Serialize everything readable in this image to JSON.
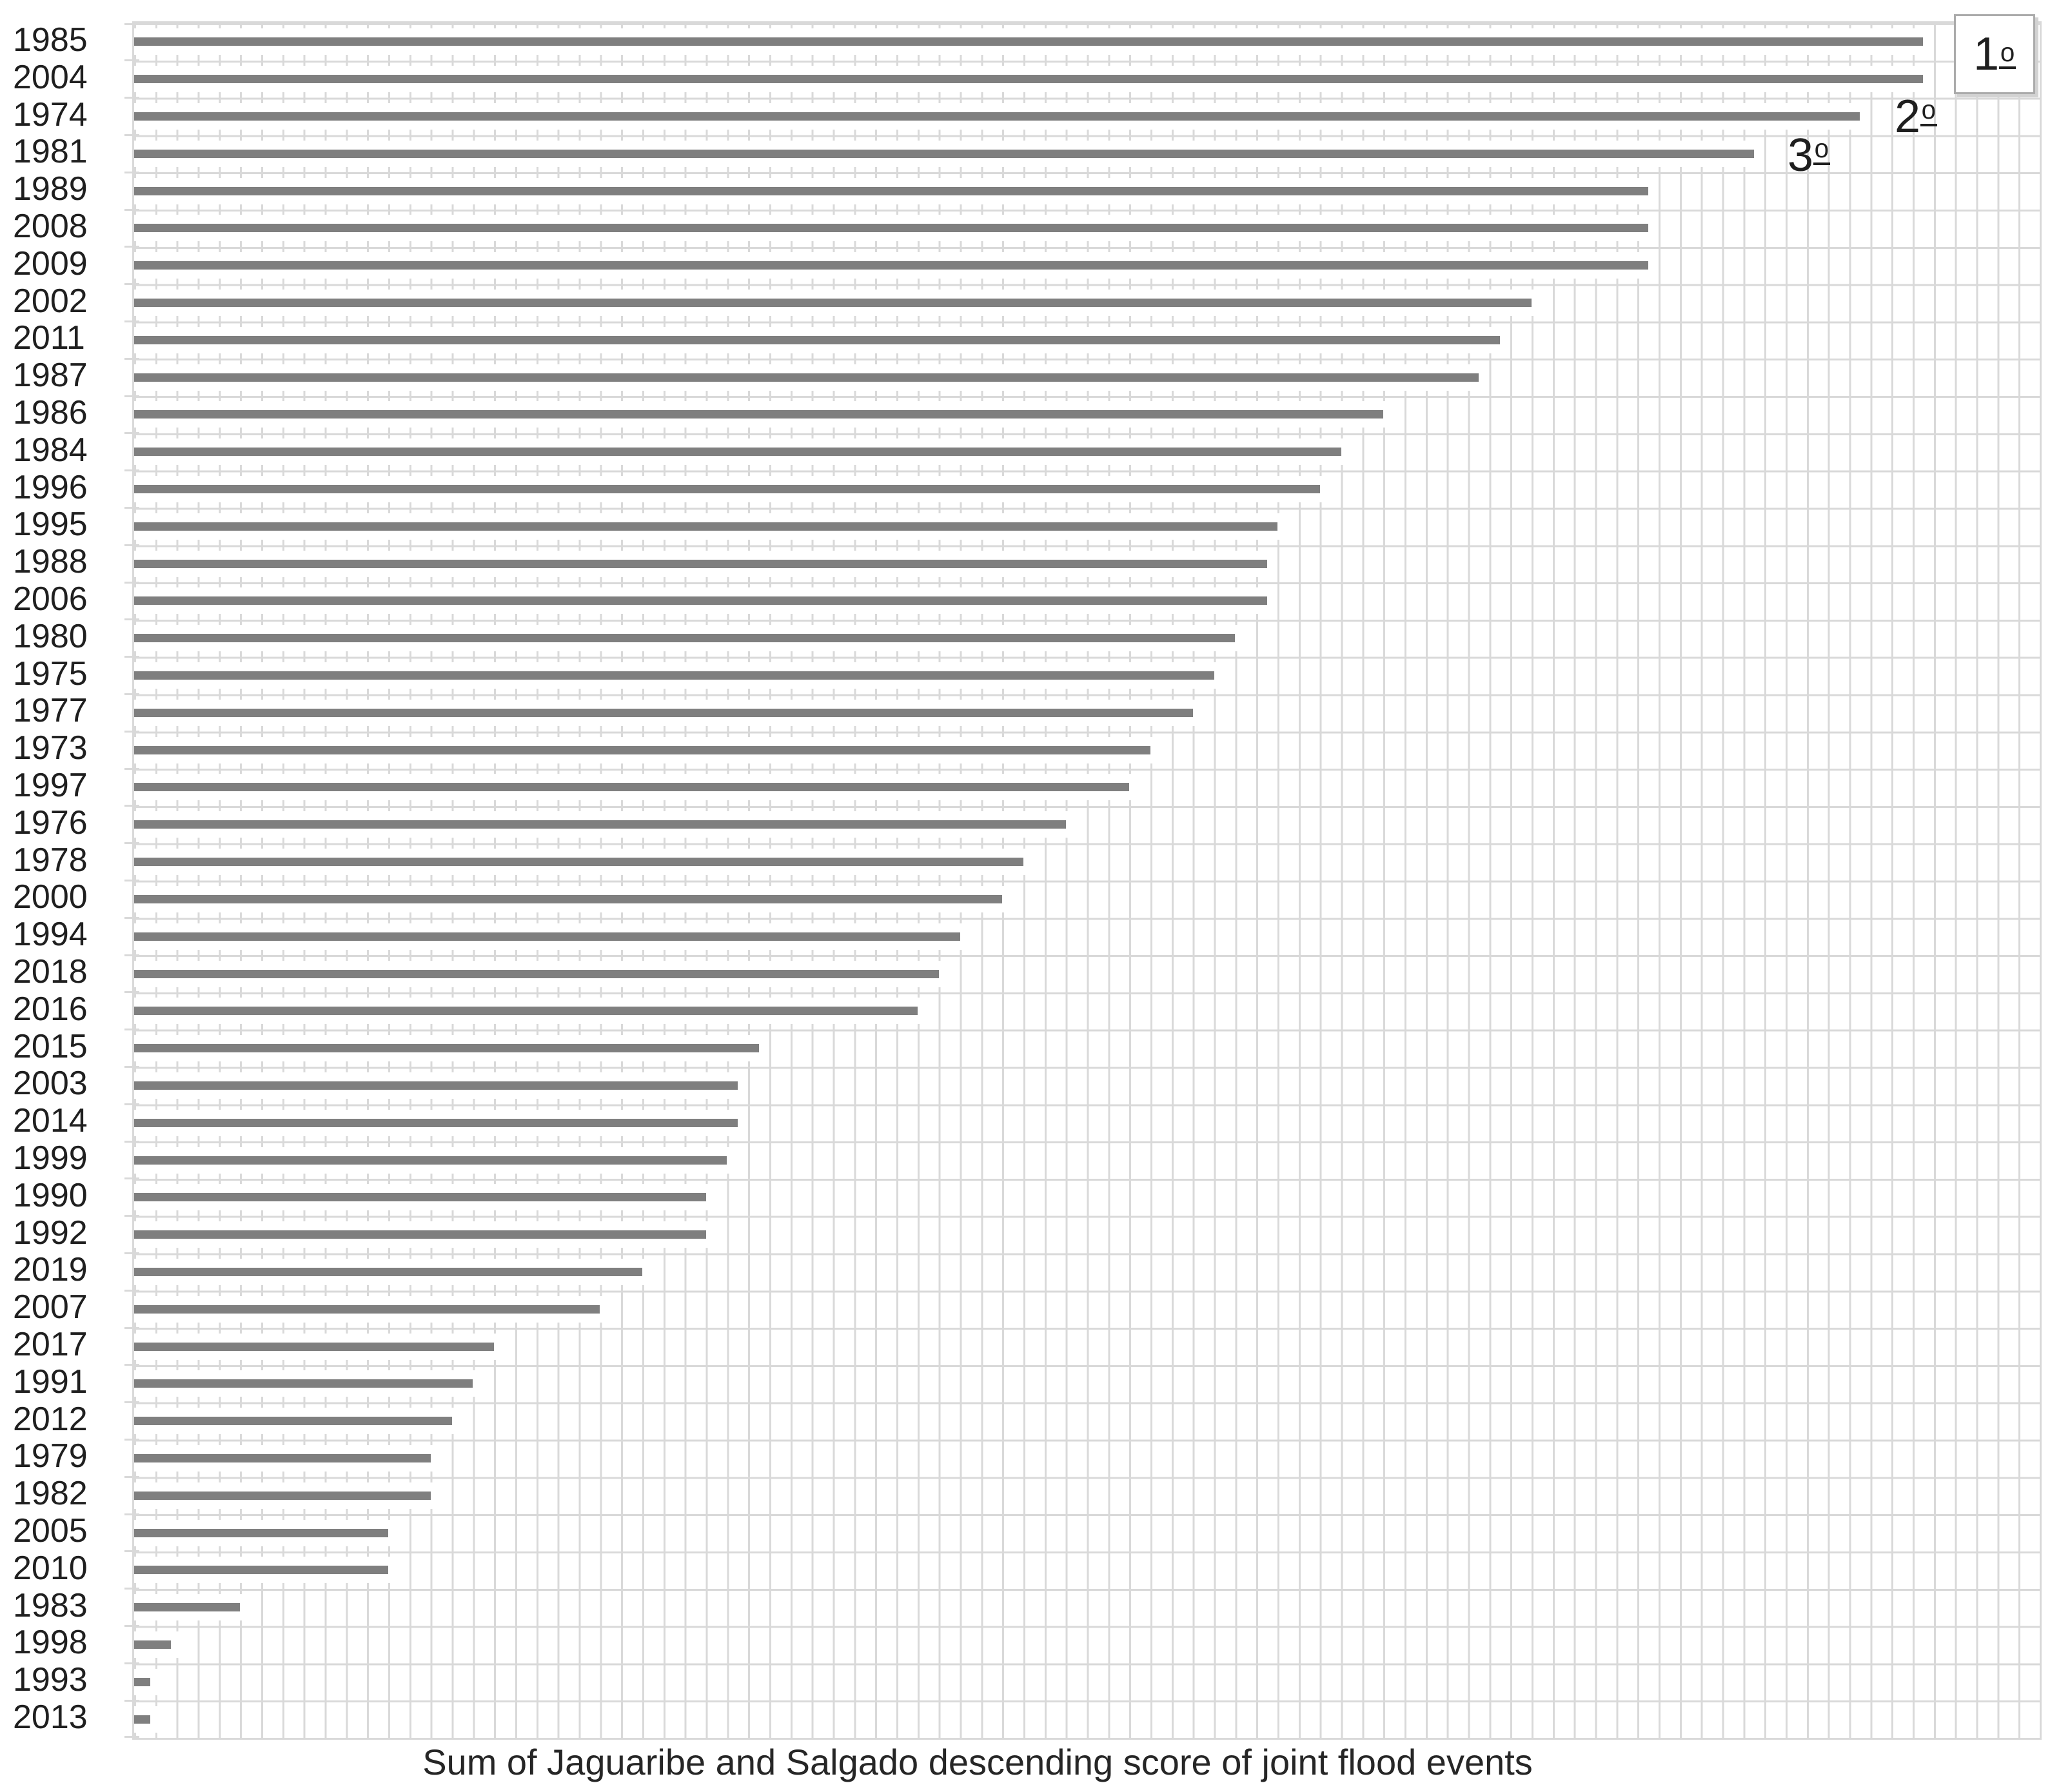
{
  "title": "Sum of Jaguaribe and Salgado descending score of joint flood events",
  "colors": {
    "background": "#ffffff",
    "bar": "#7f7f7f",
    "grid": "#d9d9d9",
    "text": "#1f1f1f",
    "annotation_box_fill": "#ffffff",
    "annotation_box_border": "#ababab"
  },
  "chart_data": {
    "type": "bar",
    "orientation": "horizontal",
    "title": "Sum of Jaguaribe and Salgado descending score of joint flood events",
    "categories": [
      "1985",
      "2004",
      "1974",
      "1981",
      "1989",
      "2008",
      "2009",
      "2002",
      "2011",
      "1987",
      "1986",
      "1984",
      "1996",
      "1995",
      "1988",
      "2006",
      "1980",
      "1975",
      "1977",
      "1973",
      "1997",
      "1976",
      "1978",
      "2000",
      "1994",
      "2018",
      "2016",
      "2015",
      "2003",
      "2014",
      "1999",
      "1990",
      "1992",
      "2019",
      "2007",
      "2017",
      "1991",
      "2012",
      "1979",
      "1982",
      "2005",
      "2010",
      "1983",
      "1998",
      "1993",
      "2013"
    ],
    "values": [
      84.5,
      84.5,
      81.5,
      76.5,
      71.5,
      71.5,
      71.5,
      66,
      64.5,
      63.5,
      59,
      57,
      56,
      54,
      53.5,
      53.5,
      52,
      51,
      50,
      48,
      47,
      44,
      42,
      41,
      39,
      38,
      37,
      29.5,
      28.5,
      28.5,
      28,
      27,
      27,
      24,
      22,
      17,
      16,
      15,
      14,
      14,
      12,
      12,
      5,
      1.75,
      0.75,
      0.75
    ],
    "xlabel": "",
    "ylabel": "",
    "xlim": [
      0,
      90
    ],
    "grid_step": 1,
    "gridlines": true,
    "value_axis_labels_shown": false,
    "legend": false,
    "annotations": [
      {
        "label": "1º",
        "boxed": true,
        "rows": [
          "1985",
          "2004"
        ]
      },
      {
        "label": "2º",
        "boxed": false,
        "rows": [
          "1974"
        ]
      },
      {
        "label": "3º",
        "boxed": false,
        "rows": [
          "1981"
        ]
      }
    ]
  }
}
